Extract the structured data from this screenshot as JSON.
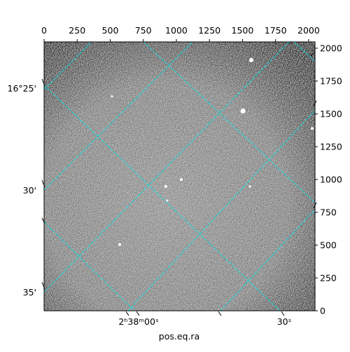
{
  "chart_data": {
    "type": "image",
    "xlabel": "pos.eq.ra",
    "xlim": [
      0,
      2048
    ],
    "ylim": [
      0,
      2048
    ],
    "xticks": [
      0,
      250,
      500,
      750,
      1000,
      1250,
      1500,
      1750,
      2000
    ],
    "yticks": [
      0,
      250,
      500,
      750,
      1000,
      1250,
      1500,
      1750,
      2000
    ],
    "dec_labels": [
      "16°25'",
      "30'",
      "35'"
    ],
    "ra_labels": [
      "2ʰ38ᵐ00ˢ",
      "30ˢ"
    ],
    "grid_color": "#00e5e5"
  }
}
